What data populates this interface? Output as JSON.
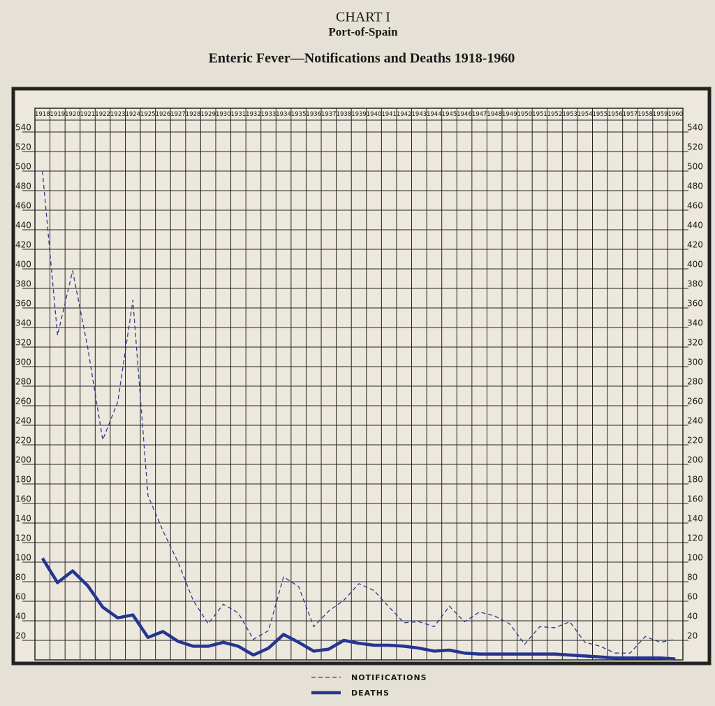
{
  "chart_data": {
    "type": "line",
    "title": "CHART I",
    "subtitle": "Port-of-Spain",
    "heading": "Enteric Fever—Notifications and Deaths 1918-1960",
    "categories": [
      "1918",
      "1919",
      "1920",
      "1921",
      "1922",
      "1923",
      "1924",
      "1925",
      "1926",
      "1927",
      "1928",
      "1929",
      "1930",
      "1931",
      "1932",
      "1933",
      "1934",
      "1935",
      "1936",
      "1937",
      "1938",
      "1939",
      "1940",
      "1941",
      "1942",
      "1943",
      "1944",
      "1945",
      "1946",
      "1947",
      "1948",
      "1949",
      "1950",
      "1951",
      "1952",
      "1953",
      "1954",
      "1955",
      "1956",
      "1957",
      "1958",
      "1959",
      "1960"
    ],
    "series": [
      {
        "name": "NOTIFICATIONS",
        "color": "#2c3a8c",
        "line_style": "dashed",
        "values": [
          500,
          332,
          398,
          320,
          225,
          264,
          368,
          168,
          132,
          100,
          61,
          37,
          57,
          48,
          21,
          30,
          85,
          75,
          34,
          50,
          61,
          78,
          71,
          54,
          38,
          39,
          34,
          55,
          39,
          49,
          45,
          37,
          16,
          34,
          33,
          39,
          18,
          14,
          7,
          7,
          24,
          18,
          21
        ]
      },
      {
        "name": "DEATHS",
        "color": "#26358f",
        "line_style": "solid",
        "values": [
          104,
          79,
          91,
          76,
          54,
          43,
          46,
          23,
          29,
          19,
          14,
          14,
          18,
          14,
          5,
          12,
          26,
          18,
          9,
          11,
          20,
          17,
          15,
          15,
          14,
          12,
          9,
          10,
          7,
          6,
          6,
          6,
          6,
          6,
          6,
          5,
          4,
          3,
          2,
          2,
          2,
          2,
          1
        ]
      }
    ],
    "ylim": [
      0,
      550
    ],
    "yticks": [
      20,
      40,
      60,
      80,
      100,
      120,
      140,
      160,
      180,
      200,
      220,
      240,
      260,
      280,
      300,
      320,
      340,
      360,
      380,
      400,
      420,
      440,
      460,
      480,
      500,
      520,
      540
    ],
    "grid": true
  }
}
